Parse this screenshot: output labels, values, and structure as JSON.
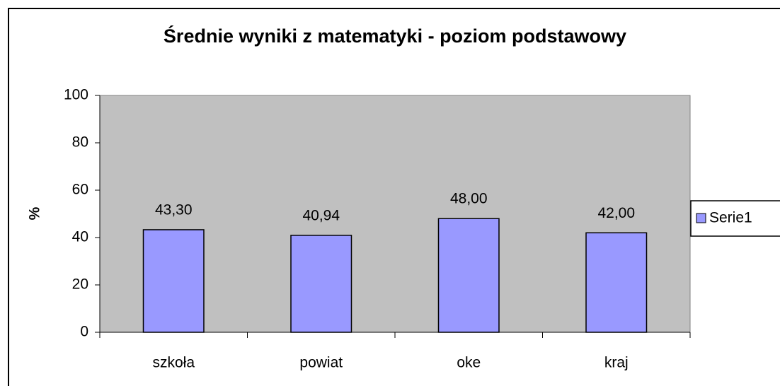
{
  "chart_data": {
    "type": "bar",
    "title": "Średnie wyniki z matematyki - poziom podstawowy",
    "ylabel": "%",
    "categories": [
      "szkoła",
      "powiat",
      "oke",
      "kraj"
    ],
    "series": [
      {
        "name": "Serie1",
        "color": "#9999ff",
        "values": [
          43.3,
          40.94,
          48,
          42
        ],
        "value_labels": [
          "43,30",
          "40,94",
          "48,00",
          "42,00"
        ]
      }
    ],
    "ylim": [
      0,
      100
    ],
    "yticks": [
      0,
      20,
      40,
      60,
      80,
      100
    ],
    "grid": false,
    "legend": "right",
    "plot_background": "#c0c0c0"
  }
}
